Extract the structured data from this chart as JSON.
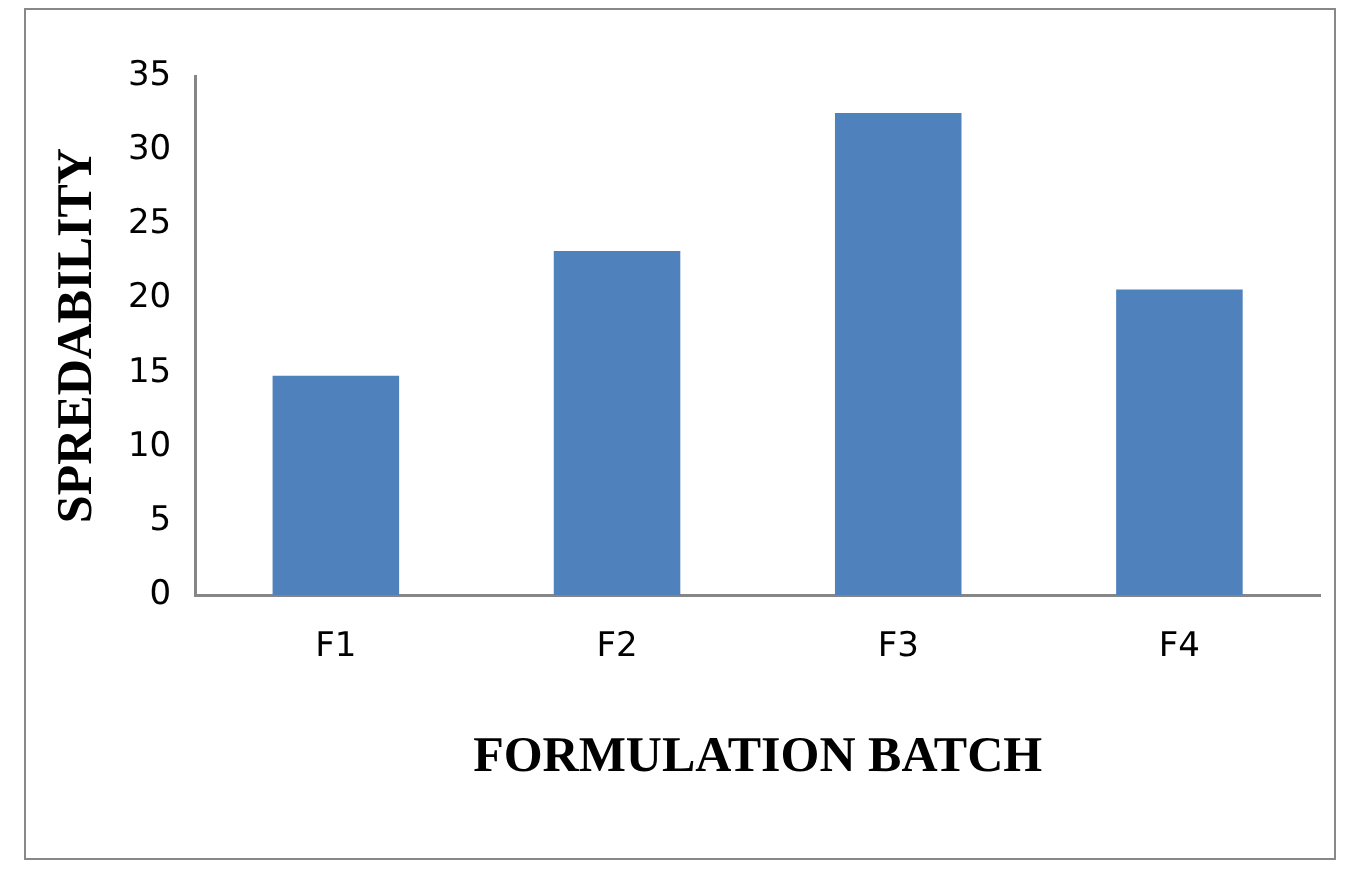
{
  "chart_data": {
    "type": "bar",
    "xlabel": "FORMULATION BATCH",
    "ylabel": "SPREDABILITY",
    "categories": [
      "F1",
      "F2",
      "F3",
      "F4"
    ],
    "values": [
      14.8,
      23.2,
      32.5,
      20.6
    ],
    "color": "#4f81bd",
    "ylim": [
      0,
      35
    ],
    "yticks": [
      0,
      5,
      10,
      15,
      20,
      25,
      30,
      35
    ],
    "grid": false,
    "legend": false
  }
}
